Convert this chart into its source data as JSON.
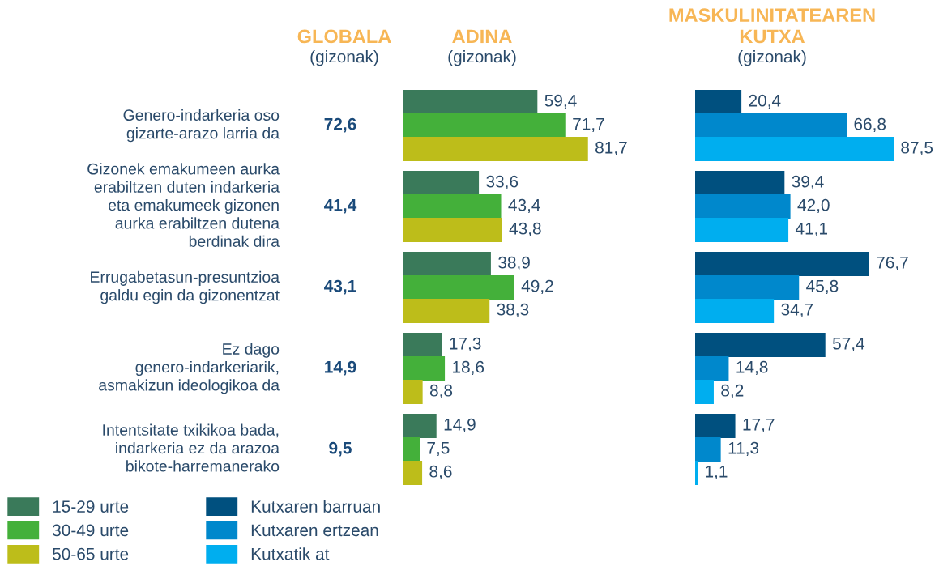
{
  "chart_data": [
    {
      "type": "other",
      "title": "GLOBALA",
      "subtitle": "(gizonak)",
      "categories": [
        "Genero-indarkeria oso gizarte-arazo larria da",
        "Gizonek emakumeen aurka erabiltzen duten indarkeria eta emakumeek gizonen aurka erabiltzen dutena berdinak dira",
        "Errugabetasun-presuntzioa galdu egin da gizonentzat",
        "Ez dago genero-indarkeriarik, asmakizun ideologikoa da",
        "Intentsitate txikikoa bada, indarkeria ez da arazoa bikote-harremanerako"
      ],
      "annotations": [
        "72,6",
        "41,4",
        "43,1",
        "14,9",
        "9,5"
      ]
    },
    {
      "type": "bar",
      "orientation": "horizontal",
      "title": "ADINA",
      "subtitle": "(gizonak)",
      "categories": [
        null,
        null,
        null,
        null,
        null
      ],
      "legend": "bottom left",
      "series": [
        {
          "name": "15-29 urte",
          "color": "#3a7a5a",
          "values": [
            59.4,
            33.6,
            38.9,
            17.3,
            14.9
          ],
          "value_labels": [
            "59,4",
            "33,6",
            "38,9",
            "17,3",
            "14,9"
          ]
        },
        {
          "name": "30-49 urte",
          "color": "#44b03a",
          "values": [
            71.7,
            43.4,
            49.2,
            18.6,
            7.5
          ],
          "value_labels": [
            "71,7",
            "43,4",
            "49,2",
            "18,6",
            "7,5"
          ]
        },
        {
          "name": "50-65 urte",
          "color": "#bdbd1a",
          "values": [
            81.7,
            43.8,
            38.3,
            8.8,
            8.6
          ],
          "value_labels": [
            "81,7",
            "43,8",
            "38,3",
            "8,8",
            "8,6"
          ]
        }
      ]
    },
    {
      "type": "bar",
      "orientation": "horizontal",
      "title": "MASKULINITATEAREN\nKUTXA",
      "subtitle": "(gizonak)",
      "categories": [
        null,
        null,
        null,
        null,
        null
      ],
      "legend": "bottom left",
      "series": [
        {
          "name": "Kutxaren barruan",
          "color": "#00507f",
          "values": [
            20.4,
            39.4,
            76.7,
            57.4,
            17.7
          ],
          "value_labels": [
            "20,4",
            "39,4",
            "76,7",
            "57,4",
            "17,7"
          ]
        },
        {
          "name": "Kutxaren ertzean",
          "color": "#0088cc",
          "values": [
            66.8,
            42.0,
            45.8,
            14.8,
            11.3
          ],
          "value_labels": [
            "66,8",
            "42,0",
            "45,8",
            "14,8",
            "11,3"
          ]
        },
        {
          "name": "Kutxatik at",
          "color": "#00aeef",
          "values": [
            87.5,
            41.1,
            34.7,
            8.2,
            1.1
          ],
          "value_labels": [
            "87,5",
            "41,1",
            "34,7",
            "8,2",
            "1,1"
          ]
        }
      ]
    }
  ]
}
